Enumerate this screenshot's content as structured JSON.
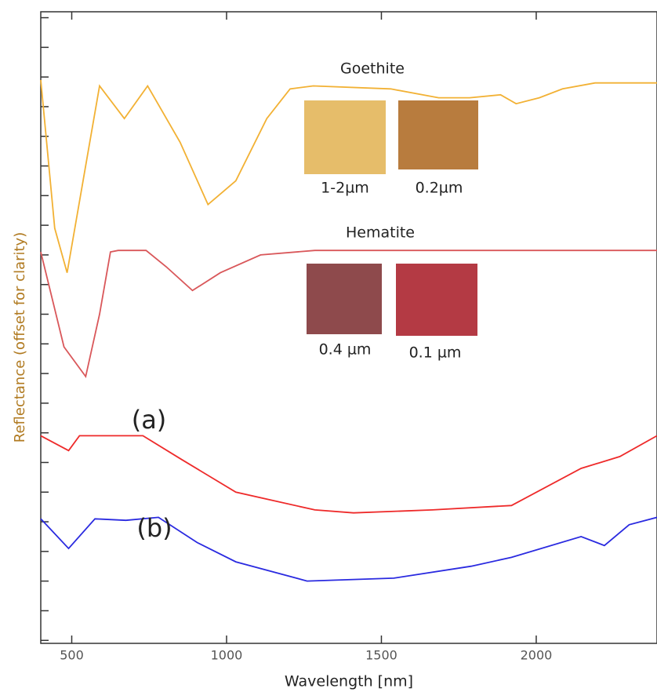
{
  "chart_data": {
    "type": "line",
    "xlabel": "Wavelength [nm]",
    "ylabel": "Reflectance (offset for clarity)",
    "xlim": [
      400,
      2390
    ],
    "xticks": [
      500,
      1000,
      1500,
      2000
    ],
    "ylim": [
      -0.1,
      21.2
    ],
    "yticks": [
      0,
      1,
      2,
      3,
      4,
      5,
      6,
      7,
      8,
      9,
      10,
      11,
      12,
      13,
      14,
      15,
      16,
      17,
      18,
      19,
      20,
      21
    ],
    "series": [
      {
        "name": "Goethite",
        "color": "#f2b134",
        "x": [
          400,
          445,
          485,
          550,
          590,
          670,
          745,
          850,
          940,
          1030,
          1130,
          1205,
          1280,
          1530,
          1685,
          1785,
          1885,
          1935,
          2010,
          2085,
          2190,
          2390
        ],
        "values": [
          18.9,
          13.9,
          12.4,
          16.3,
          18.7,
          17.6,
          18.7,
          16.8,
          14.7,
          15.5,
          17.6,
          18.6,
          18.7,
          18.6,
          18.3,
          18.3,
          18.4,
          18.1,
          18.3,
          18.6,
          18.8,
          18.8
        ]
      },
      {
        "name": "Hematite",
        "color": "#d9575a",
        "x": [
          400,
          475,
          545,
          590,
          625,
          650,
          740,
          805,
          890,
          980,
          1110,
          1285,
          2390
        ],
        "values": [
          13.1,
          9.9,
          8.9,
          11.0,
          13.1,
          13.15,
          13.15,
          12.6,
          11.8,
          12.4,
          13.0,
          13.15,
          13.15
        ]
      },
      {
        "name": "(a)",
        "color": "#ee2a2a",
        "x": [
          400,
          490,
          525,
          730,
          855,
          1030,
          1285,
          1410,
          1665,
          1920,
          2145,
          2270,
          2390
        ],
        "values": [
          6.9,
          6.4,
          6.9,
          6.9,
          6.1,
          5.0,
          4.4,
          4.3,
          4.4,
          4.55,
          5.8,
          6.2,
          6.9
        ]
      },
      {
        "name": "(b)",
        "color": "#2a2ae0",
        "x": [
          400,
          490,
          575,
          675,
          780,
          905,
          1030,
          1260,
          1540,
          1790,
          1920,
          2145,
          2220,
          2300,
          2390
        ],
        "values": [
          4.1,
          3.1,
          4.1,
          4.05,
          4.15,
          3.3,
          2.65,
          2.0,
          2.1,
          2.5,
          2.8,
          3.5,
          3.2,
          3.9,
          4.15
        ]
      }
    ],
    "annotations": [
      "1-2µm",
      "0.2µm",
      "0.4 µm",
      "0.1 µm"
    ]
  }
}
